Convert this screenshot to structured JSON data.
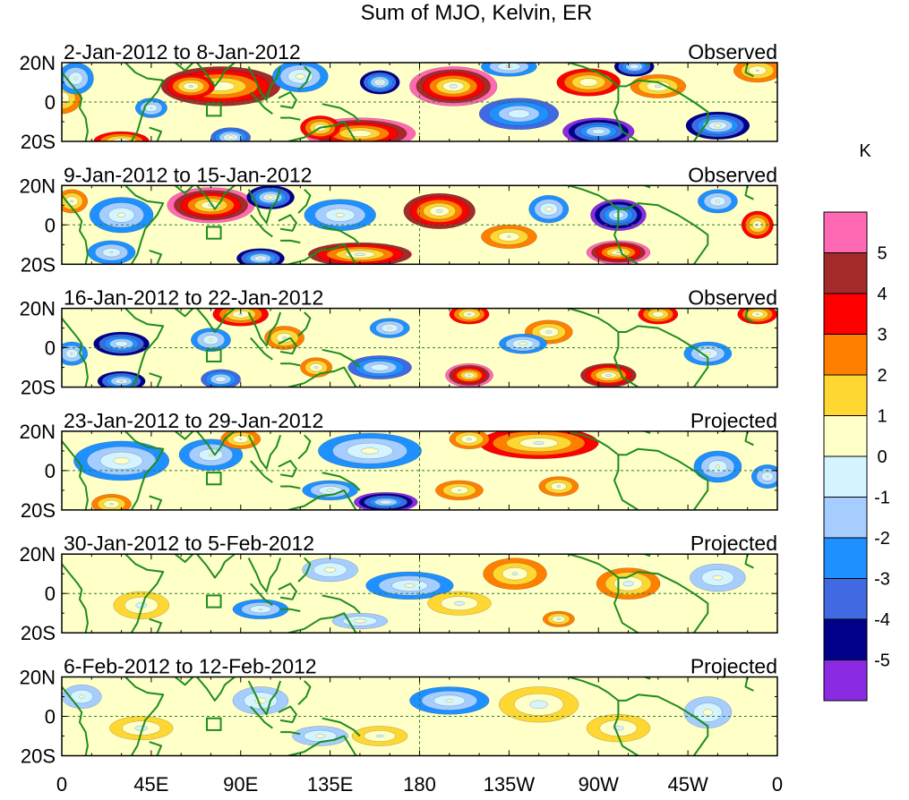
{
  "chart_data": {
    "type": "heatmap",
    "title": "Sum of MJO, Kelvin, ER",
    "unit_label": "K",
    "x_ticks": [
      "0",
      "45E",
      "90E",
      "135E",
      "180",
      "135W",
      "90W",
      "45W",
      "0"
    ],
    "y_ticks": [
      "20N",
      "0",
      "20S"
    ],
    "lon_range": [
      0,
      360
    ],
    "lat_range": [
      -20,
      20
    ],
    "colorbar": {
      "levels": [
        "-5",
        "-4",
        "-3",
        "-2",
        "-1",
        "0",
        "1",
        "2",
        "3",
        "4",
        "5"
      ],
      "colors": [
        "#8a2be2",
        "#00008b",
        "#4169e1",
        "#1e90ff",
        "#a5cdff",
        "#d4f4ff",
        "#ffffc8",
        "#ffd733",
        "#ff7f00",
        "#ff0000",
        "#a52a2a",
        "#ff69b4"
      ]
    },
    "panels": [
      {
        "date_range": "2-Jan-2012 to 8-Jan-2012",
        "kind": "Observed",
        "blobs": [
          {
            "lon": 80,
            "lat": 8,
            "rx": 30,
            "ry": 10,
            "v": 4.2
          },
          {
            "lon": 65,
            "lat": 8,
            "rx": 12,
            "ry": 6,
            "v": 3.4
          },
          {
            "lon": 197,
            "lat": 8,
            "rx": 22,
            "ry": 10,
            "v": 5.6
          },
          {
            "lon": 150,
            "lat": -16,
            "rx": 28,
            "ry": 8,
            "v": 5.3
          },
          {
            "lon": 130,
            "lat": -13,
            "rx": 10,
            "ry": 6,
            "v": 3.2
          },
          {
            "lon": 30,
            "lat": -20,
            "rx": 14,
            "ry": 5,
            "v": 3.4
          },
          {
            "lon": 0,
            "lat": 2,
            "rx": 10,
            "ry": 8,
            "v": 2.2
          },
          {
            "lon": 7,
            "lat": 12,
            "rx": 9,
            "ry": 8,
            "v": -2.3
          },
          {
            "lon": 45,
            "lat": -3,
            "rx": 8,
            "ry": 5,
            "v": -2.2
          },
          {
            "lon": 120,
            "lat": 13,
            "rx": 14,
            "ry": 8,
            "v": -2.6
          },
          {
            "lon": 160,
            "lat": 10,
            "rx": 10,
            "ry": 6,
            "v": -4.6
          },
          {
            "lon": 230,
            "lat": -6,
            "rx": 20,
            "ry": 8,
            "v": -3.1
          },
          {
            "lon": 270,
            "lat": -15,
            "rx": 18,
            "ry": 7,
            "v": -5.1
          },
          {
            "lon": 330,
            "lat": -12,
            "rx": 16,
            "ry": 7,
            "v": -4.6
          },
          {
            "lon": 288,
            "lat": 18,
            "rx": 10,
            "ry": 5,
            "v": -4.2
          },
          {
            "lon": 265,
            "lat": 10,
            "rx": 16,
            "ry": 7,
            "v": 3.2
          },
          {
            "lon": 300,
            "lat": 8,
            "rx": 14,
            "ry": 6,
            "v": 2.4
          },
          {
            "lon": 350,
            "lat": 16,
            "rx": 12,
            "ry": 6,
            "v": 2.2
          },
          {
            "lon": 85,
            "lat": -18,
            "rx": 10,
            "ry": 5,
            "v": -3.8
          },
          {
            "lon": 225,
            "lat": 18,
            "rx": 14,
            "ry": 5,
            "v": -2.4
          }
        ]
      },
      {
        "date_range": "9-Jan-2012 to 15-Jan-2012",
        "kind": "Observed",
        "blobs": [
          {
            "lon": 75,
            "lat": 10,
            "rx": 22,
            "ry": 9,
            "v": 5.4
          },
          {
            "lon": 190,
            "lat": 7,
            "rx": 18,
            "ry": 9,
            "v": 4.5
          },
          {
            "lon": 150,
            "lat": -15,
            "rx": 26,
            "ry": 6,
            "v": 4.6
          },
          {
            "lon": 280,
            "lat": -14,
            "rx": 16,
            "ry": 6,
            "v": 5.4
          },
          {
            "lon": 350,
            "lat": 0,
            "rx": 8,
            "ry": 7,
            "v": 3.3
          },
          {
            "lon": 280,
            "lat": 5,
            "rx": 14,
            "ry": 8,
            "v": -5.2
          },
          {
            "lon": 105,
            "lat": 14,
            "rx": 12,
            "ry": 6,
            "v": -4.8
          },
          {
            "lon": 140,
            "lat": 5,
            "rx": 18,
            "ry": 8,
            "v": -2.4
          },
          {
            "lon": 100,
            "lat": -17,
            "rx": 12,
            "ry": 5,
            "v": -4.4
          },
          {
            "lon": 30,
            "lat": 5,
            "rx": 16,
            "ry": 9,
            "v": -2.4
          },
          {
            "lon": 245,
            "lat": 8,
            "rx": 10,
            "ry": 7,
            "v": -2.6
          },
          {
            "lon": 225,
            "lat": -6,
            "rx": 14,
            "ry": 6,
            "v": 2.2
          },
          {
            "lon": 25,
            "lat": -14,
            "rx": 12,
            "ry": 6,
            "v": -2.2
          },
          {
            "lon": 330,
            "lat": 12,
            "rx": 10,
            "ry": 6,
            "v": -2.3
          },
          {
            "lon": 5,
            "lat": 12,
            "rx": 8,
            "ry": 6,
            "v": 2.3
          }
        ]
      },
      {
        "date_range": "16-Jan-2012 to 22-Jan-2012",
        "kind": "Observed",
        "blobs": [
          {
            "lon": 90,
            "lat": 17,
            "rx": 14,
            "ry": 6,
            "v": 3.3
          },
          {
            "lon": 205,
            "lat": -14,
            "rx": 12,
            "ry": 6,
            "v": 5.4
          },
          {
            "lon": 275,
            "lat": -14,
            "rx": 14,
            "ry": 6,
            "v": 4.6
          },
          {
            "lon": 205,
            "lat": 17,
            "rx": 10,
            "ry": 5,
            "v": 3.4
          },
          {
            "lon": 245,
            "lat": 8,
            "rx": 12,
            "ry": 6,
            "v": 2.4
          },
          {
            "lon": 350,
            "lat": 17,
            "rx": 10,
            "ry": 5,
            "v": 3.3
          },
          {
            "lon": 300,
            "lat": 17,
            "rx": 10,
            "ry": 5,
            "v": 3.2
          },
          {
            "lon": 112,
            "lat": 5,
            "rx": 10,
            "ry": 6,
            "v": 2.3
          },
          {
            "lon": 128,
            "lat": -10,
            "rx": 8,
            "ry": 5,
            "v": 2.4
          },
          {
            "lon": 30,
            "lat": 2,
            "rx": 14,
            "ry": 6,
            "v": -4.2
          },
          {
            "lon": 30,
            "lat": -17,
            "rx": 12,
            "ry": 5,
            "v": -4.4
          },
          {
            "lon": 80,
            "lat": -16,
            "rx": 10,
            "ry": 5,
            "v": -3.1
          },
          {
            "lon": 75,
            "lat": 4,
            "rx": 10,
            "ry": 6,
            "v": -2.3
          },
          {
            "lon": 160,
            "lat": -10,
            "rx": 16,
            "ry": 6,
            "v": -3.2
          },
          {
            "lon": 165,
            "lat": 10,
            "rx": 10,
            "ry": 5,
            "v": -2.4
          },
          {
            "lon": 232,
            "lat": 2,
            "rx": 12,
            "ry": 5,
            "v": -2.6
          },
          {
            "lon": 325,
            "lat": -3,
            "rx": 12,
            "ry": 6,
            "v": -2.4
          },
          {
            "lon": 5,
            "lat": -3,
            "rx": 8,
            "ry": 6,
            "v": -2.2
          }
        ]
      },
      {
        "date_range": "23-Jan-2012 to 29-Jan-2012",
        "kind": "Projected",
        "blobs": [
          {
            "lon": 240,
            "lat": 14,
            "rx": 30,
            "ry": 8,
            "v": 3.4
          },
          {
            "lon": 205,
            "lat": 16,
            "rx": 10,
            "ry": 5,
            "v": 2.4
          },
          {
            "lon": 163,
            "lat": -16,
            "rx": 16,
            "ry": 5,
            "v": -5.2
          },
          {
            "lon": 135,
            "lat": -10,
            "rx": 14,
            "ry": 5,
            "v": -2.4
          },
          {
            "lon": 30,
            "lat": 5,
            "rx": 24,
            "ry": 10,
            "v": -2.6
          },
          {
            "lon": 75,
            "lat": 8,
            "rx": 16,
            "ry": 8,
            "v": -2.2
          },
          {
            "lon": 155,
            "lat": 10,
            "rx": 26,
            "ry": 9,
            "v": -2.6
          },
          {
            "lon": 250,
            "lat": -8,
            "rx": 10,
            "ry": 5,
            "v": 2.3
          },
          {
            "lon": 200,
            "lat": -10,
            "rx": 12,
            "ry": 5,
            "v": 2.2
          },
          {
            "lon": 25,
            "lat": -17,
            "rx": 10,
            "ry": 5,
            "v": 2.3
          },
          {
            "lon": 90,
            "lat": 16,
            "rx": 10,
            "ry": 5,
            "v": 2.2
          },
          {
            "lon": 330,
            "lat": 2,
            "rx": 12,
            "ry": 8,
            "v": -2.3
          },
          {
            "lon": 355,
            "lat": -3,
            "rx": 8,
            "ry": 6,
            "v": -2.2
          }
        ]
      },
      {
        "date_range": "30-Jan-2012 to 5-Feb-2012",
        "kind": "Projected",
        "blobs": [
          {
            "lon": 285,
            "lat": 5,
            "rx": 16,
            "ry": 8,
            "v": 2.6
          },
          {
            "lon": 228,
            "lat": 10,
            "rx": 16,
            "ry": 8,
            "v": 2.3
          },
          {
            "lon": 250,
            "lat": -13,
            "rx": 8,
            "ry": 4,
            "v": 2.4
          },
          {
            "lon": 175,
            "lat": 4,
            "rx": 22,
            "ry": 7,
            "v": -2.4
          },
          {
            "lon": 100,
            "lat": -8,
            "rx": 14,
            "ry": 5,
            "v": -2.2
          },
          {
            "lon": 150,
            "lat": -14,
            "rx": 14,
            "ry": 4,
            "v": -1.6
          },
          {
            "lon": 40,
            "lat": -6,
            "rx": 14,
            "ry": 7,
            "v": 1.5
          },
          {
            "lon": 135,
            "lat": 12,
            "rx": 14,
            "ry": 6,
            "v": -1.5
          },
          {
            "lon": 330,
            "lat": 8,
            "rx": 14,
            "ry": 7,
            "v": -1.4
          },
          {
            "lon": 200,
            "lat": -5,
            "rx": 16,
            "ry": 6,
            "v": 1.4
          }
        ]
      },
      {
        "date_range": "6-Feb-2012 to 12-Feb-2012",
        "kind": "Projected",
        "blobs": [
          {
            "lon": 195,
            "lat": 8,
            "rx": 20,
            "ry": 7,
            "v": -2.3
          },
          {
            "lon": 240,
            "lat": 6,
            "rx": 20,
            "ry": 9,
            "v": 1.6
          },
          {
            "lon": 40,
            "lat": -6,
            "rx": 16,
            "ry": 6,
            "v": 1.5
          },
          {
            "lon": 280,
            "lat": -6,
            "rx": 16,
            "ry": 7,
            "v": 1.4
          },
          {
            "lon": 100,
            "lat": 8,
            "rx": 14,
            "ry": 7,
            "v": -1.5
          },
          {
            "lon": 130,
            "lat": -10,
            "rx": 14,
            "ry": 5,
            "v": -1.4
          },
          {
            "lon": 325,
            "lat": 2,
            "rx": 12,
            "ry": 8,
            "v": -1.5
          },
          {
            "lon": 160,
            "lat": -10,
            "rx": 14,
            "ry": 5,
            "v": 1.3
          },
          {
            "lon": 10,
            "lat": 10,
            "rx": 10,
            "ry": 6,
            "v": -1.3
          }
        ]
      }
    ]
  }
}
